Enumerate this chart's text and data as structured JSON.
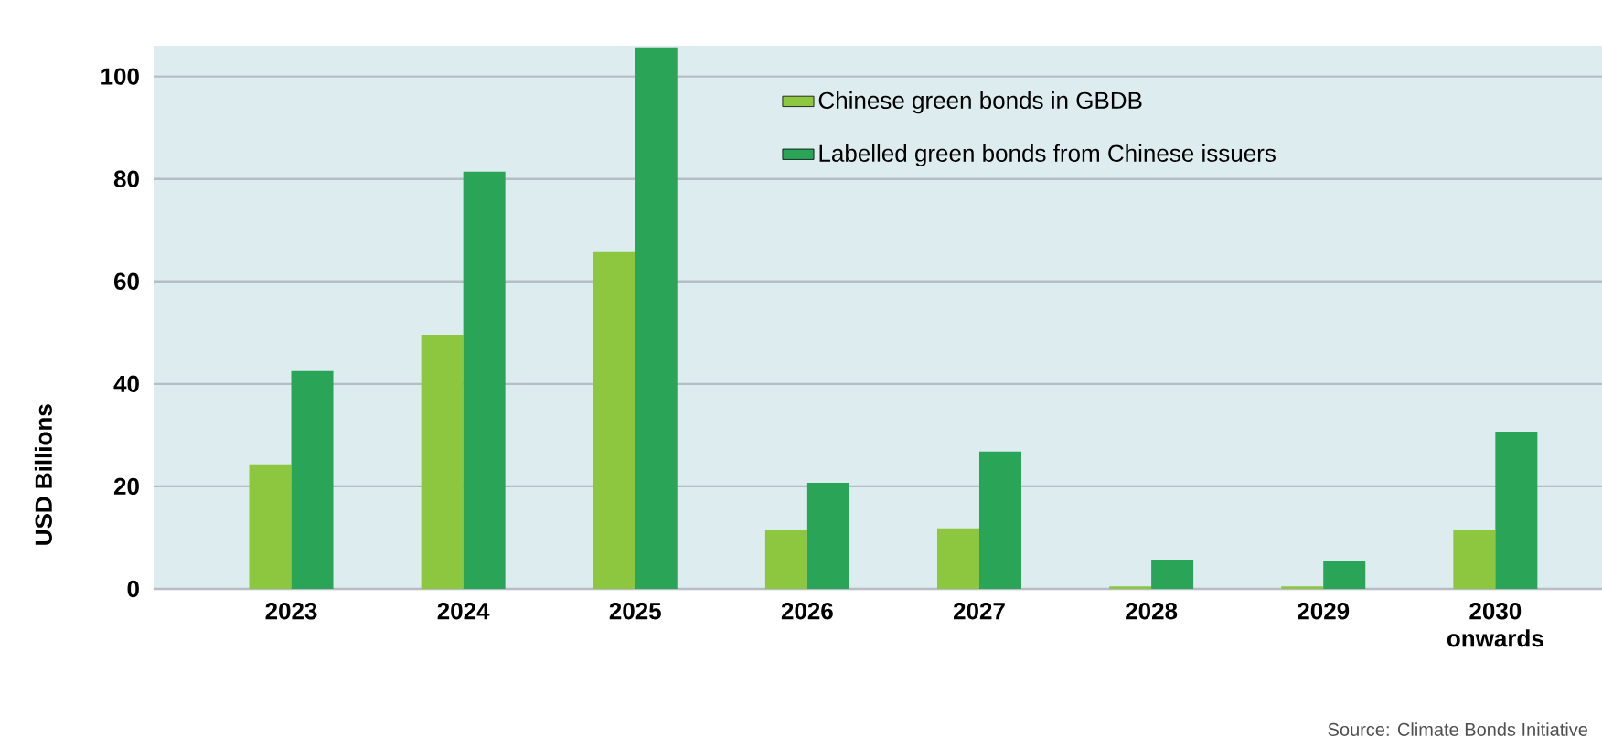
{
  "chart_data": {
    "type": "bar",
    "ylabel": "USD Billions",
    "categories": [
      "2023",
      "2024",
      "2025",
      "2026",
      "2027",
      "2028",
      "2029",
      "2030 onwards"
    ],
    "series": [
      {
        "name": "Chinese green bonds in GBDB",
        "color": "#8dc63f",
        "values": [
          24.3,
          49.6,
          65.7,
          11.4,
          11.8,
          0.5,
          0.5,
          11.4
        ]
      },
      {
        "name": "Labelled green bonds from Chinese issuers",
        "color": "#2aa457",
        "values": [
          42.5,
          81.4,
          105.7,
          20.7,
          26.8,
          5.7,
          5.4,
          30.7
        ]
      }
    ],
    "ylim": [
      0,
      106
    ],
    "yticks": [
      0,
      20,
      40,
      60,
      80,
      100
    ],
    "grid": "y",
    "legend": "top right",
    "annotations": [
      "Source: Climate Bonds Initiative"
    ]
  }
}
